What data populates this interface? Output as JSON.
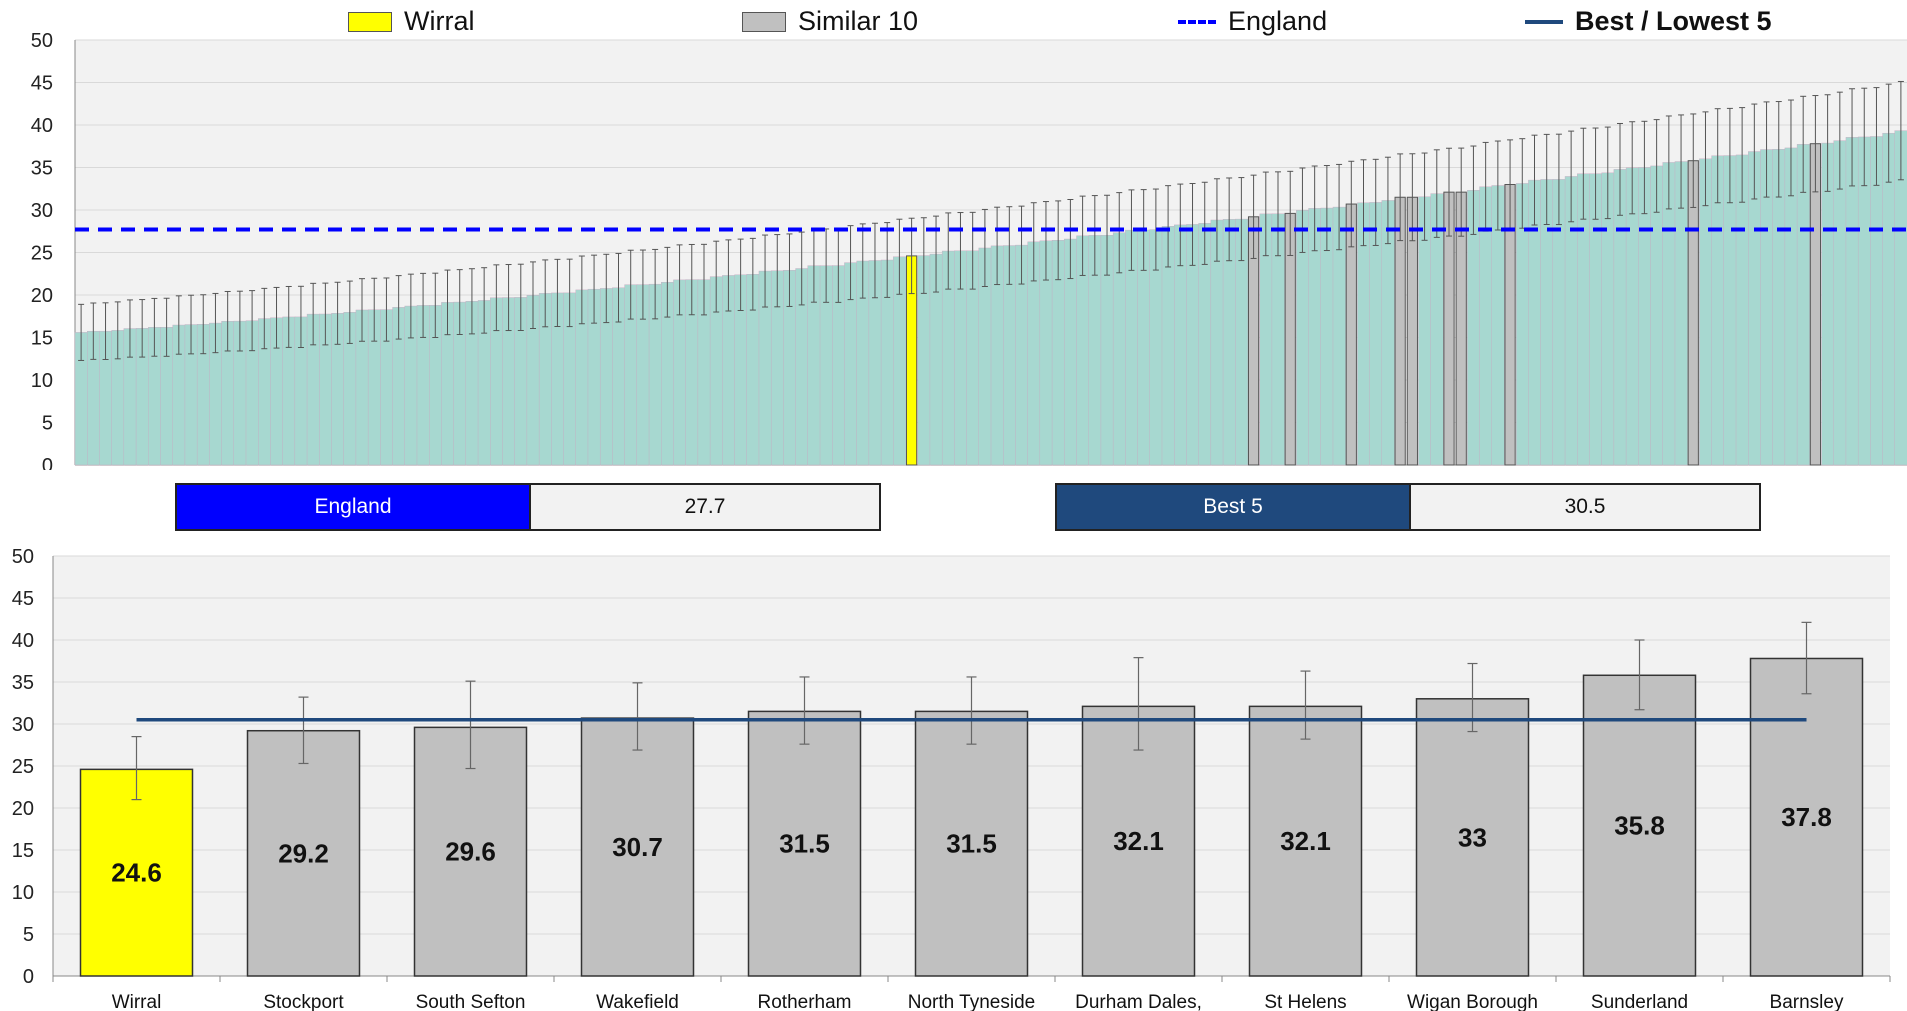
{
  "legend": {
    "items": [
      {
        "label": "Wirral",
        "kind": "box",
        "color": "#ffff00"
      },
      {
        "label": "Similar 10",
        "kind": "box",
        "color": "#c0c0c0"
      },
      {
        "label": "England",
        "kind": "dash",
        "color": "#0000ff"
      },
      {
        "label": "Best / Lowest 5",
        "kind": "line",
        "color": "#1f497d"
      }
    ]
  },
  "summary": {
    "england_label": "England",
    "england_value": "27.7",
    "best_label": "Best 5",
    "best_value": "30.5",
    "england_color": "#0000ff",
    "best_color": "#1f497d"
  },
  "chart_data": [
    {
      "type": "bar",
      "title": "",
      "xlabel": "",
      "ylabel": "",
      "ylim": [
        0,
        50
      ],
      "yticks": [
        0,
        5,
        10,
        15,
        20,
        25,
        30,
        35,
        40,
        45,
        50
      ],
      "grid": true,
      "legend_position": "top",
      "bar_count": 150,
      "value_range": [
        15.6,
        39.2
      ],
      "highlight": [
        {
          "name": "Wirral",
          "value": 24.6,
          "color": "#ffff00"
        },
        {
          "name": "Stockport",
          "value": 29.2,
          "color": "#c0c0c0"
        },
        {
          "name": "South Sefton",
          "value": 29.6,
          "color": "#c0c0c0"
        },
        {
          "name": "Wakefield",
          "value": 30.7,
          "color": "#c0c0c0"
        },
        {
          "name": "Rotherham",
          "value": 31.5,
          "color": "#c0c0c0"
        },
        {
          "name": "North Tyneside",
          "value": 31.5,
          "color": "#c0c0c0"
        },
        {
          "name": "Durham Dales,",
          "value": 32.1,
          "color": "#c0c0c0"
        },
        {
          "name": "St Helens",
          "value": 32.1,
          "color": "#c0c0c0"
        },
        {
          "name": "Wigan Borough",
          "value": 33,
          "color": "#c0c0c0"
        },
        {
          "name": "Sunderland",
          "value": 35.8,
          "color": "#c0c0c0"
        },
        {
          "name": "Barnsley",
          "value": 37.8,
          "color": "#c0c0c0"
        }
      ],
      "reference_line": {
        "value": 27.7,
        "color": "#0000ff",
        "style": "dashed"
      },
      "bar_color": "#a7d8d0"
    },
    {
      "type": "bar",
      "title": "",
      "xlabel": "",
      "ylabel": "",
      "ylim": [
        0,
        50
      ],
      "yticks": [
        0,
        5,
        10,
        15,
        20,
        25,
        30,
        35,
        40,
        45,
        50
      ],
      "grid": true,
      "categories": [
        "Wirral",
        "Stockport",
        "South Sefton",
        "Wakefield",
        "Rotherham",
        "North Tyneside",
        "Durham Dales,",
        "St Helens",
        "Wigan Borough",
        "Sunderland",
        "Barnsley"
      ],
      "values": [
        24.6,
        29.2,
        29.6,
        30.7,
        31.5,
        31.5,
        32.1,
        32.1,
        33,
        35.8,
        37.8
      ],
      "value_labels": [
        "24.6",
        "29.2",
        "29.6",
        "30.7",
        "31.5",
        "31.5",
        "32.1",
        "32.1",
        "33",
        "35.8",
        "37.8"
      ],
      "error_low": [
        21.0,
        25.3,
        24.7,
        26.9,
        27.6,
        27.6,
        26.9,
        28.2,
        29.1,
        31.7,
        33.6
      ],
      "error_high": [
        28.5,
        33.2,
        35.1,
        34.9,
        35.6,
        35.6,
        37.9,
        36.3,
        37.2,
        40.0,
        42.1
      ],
      "colors": [
        "#ffff00",
        "#c0c0c0",
        "#c0c0c0",
        "#c0c0c0",
        "#c0c0c0",
        "#c0c0c0",
        "#c0c0c0",
        "#c0c0c0",
        "#c0c0c0",
        "#c0c0c0",
        "#c0c0c0"
      ],
      "reference_line": {
        "value": 30.5,
        "color": "#1f497d",
        "style": "solid"
      }
    }
  ]
}
